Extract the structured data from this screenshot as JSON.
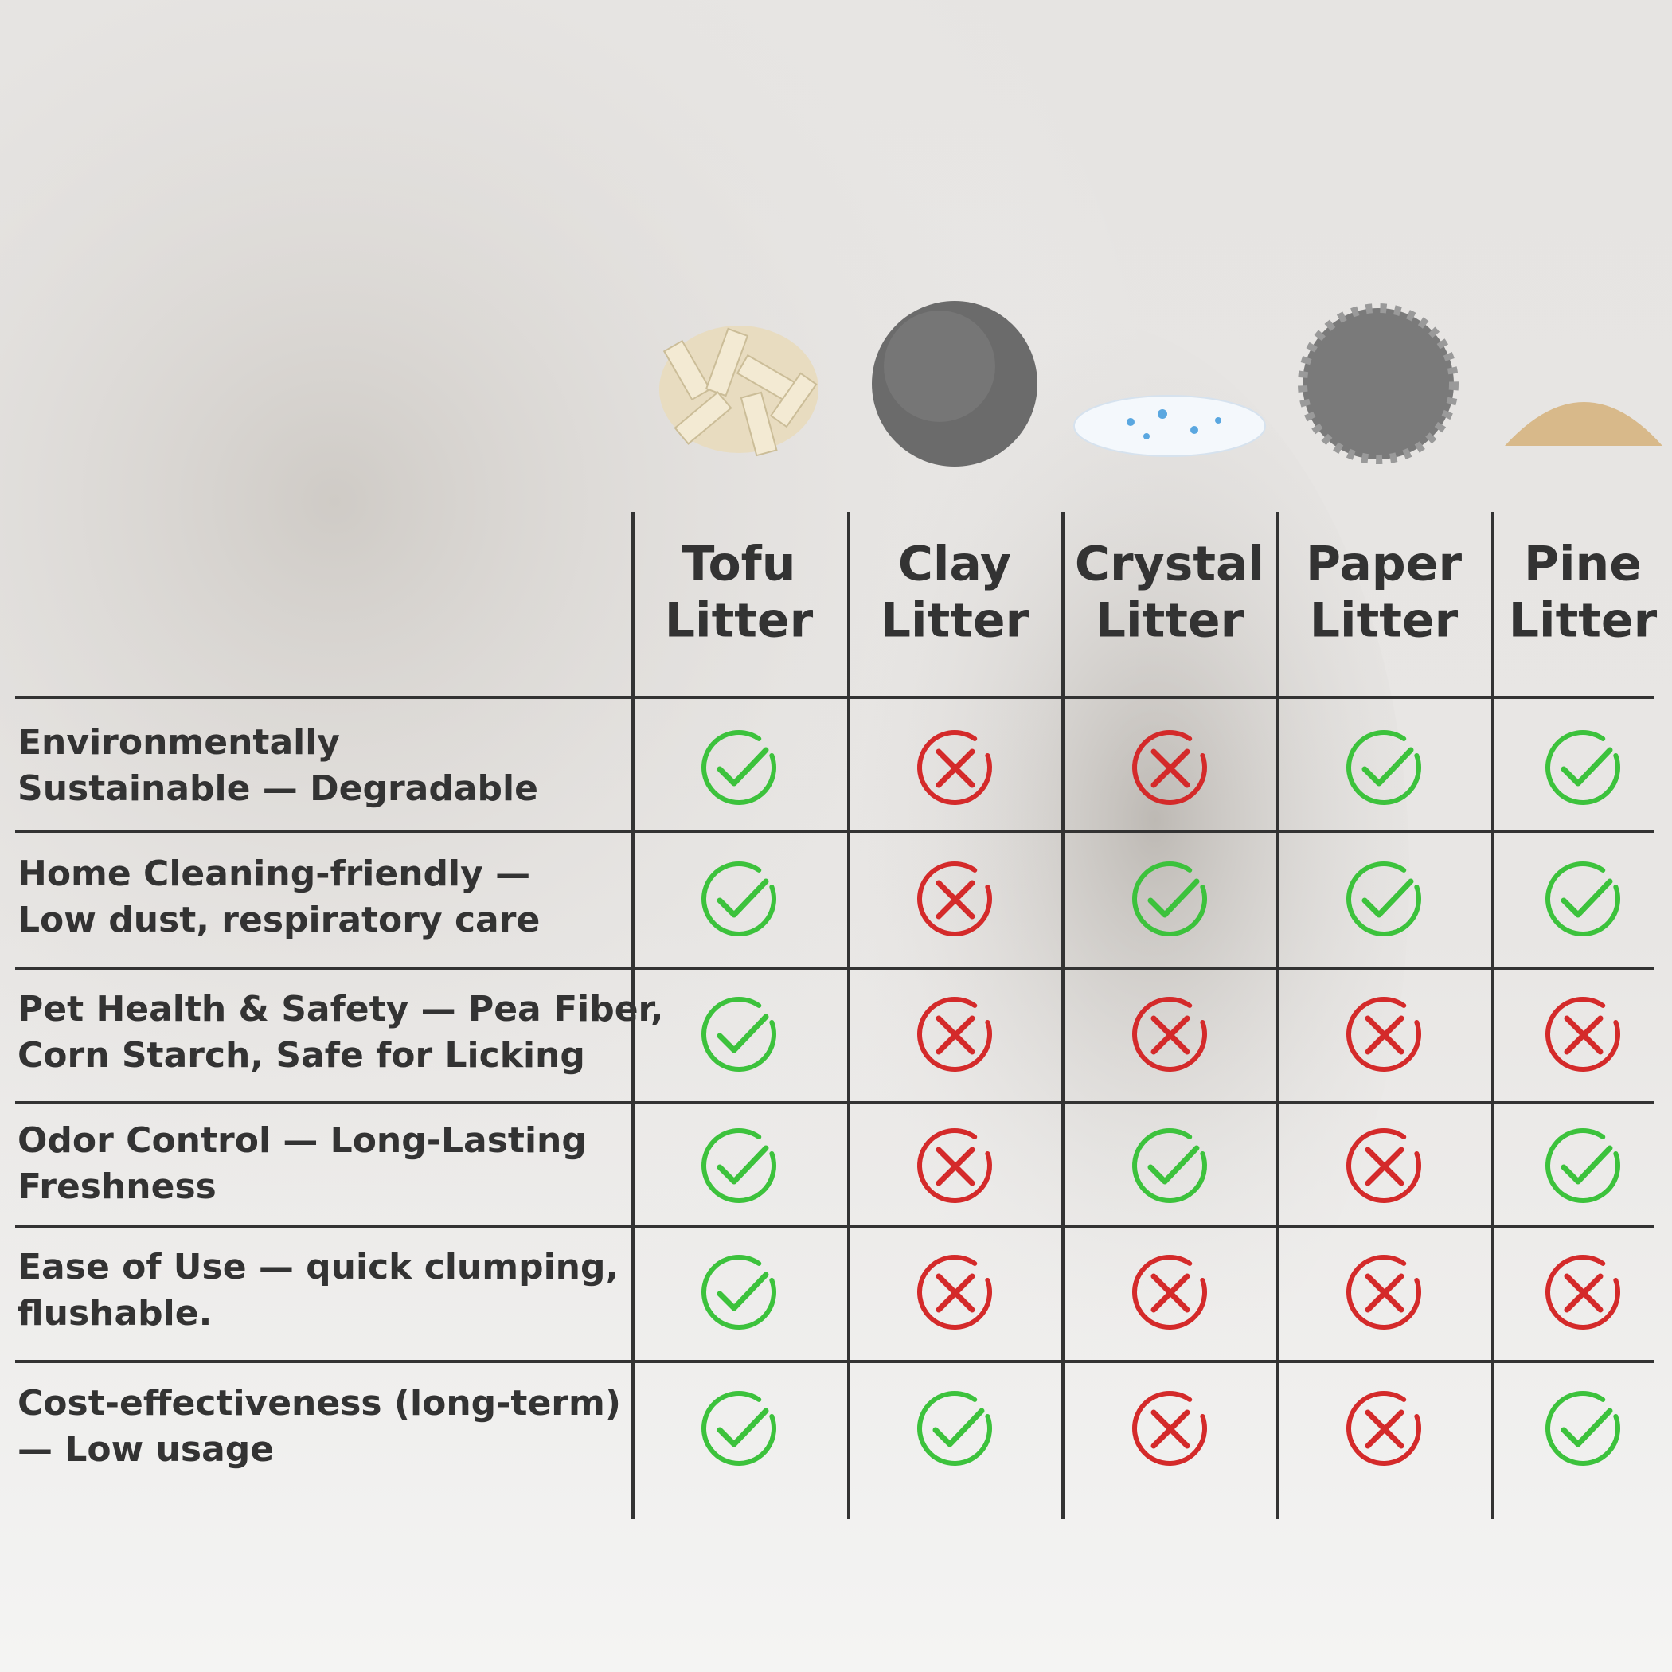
{
  "table": {
    "columns": [
      {
        "lines": [
          "Tofu",
          "Litter"
        ]
      },
      {
        "lines": [
          "Clay",
          "Litter"
        ]
      },
      {
        "lines": [
          "Crystal",
          "Litter"
        ]
      },
      {
        "lines": [
          "Paper",
          "Litter"
        ]
      },
      {
        "lines": [
          "Pine",
          "Litter"
        ]
      }
    ],
    "rows": [
      {
        "lines": [
          "Environmentally",
          "Sustainable — Degradable"
        ],
        "cells": [
          true,
          false,
          false,
          true,
          true
        ]
      },
      {
        "lines": [
          "Home Cleaning-friendly —",
          "Low dust, respiratory care"
        ],
        "cells": [
          true,
          false,
          true,
          true,
          true
        ]
      },
      {
        "lines": [
          "Pet Health & Safety — Pea Fiber,",
          "Corn Starch, Safe for Licking"
        ],
        "cells": [
          true,
          false,
          false,
          false,
          false
        ]
      },
      {
        "lines": [
          "Odor Control — Long-Lasting",
          "Freshness"
        ],
        "cells": [
          true,
          false,
          true,
          false,
          true
        ]
      },
      {
        "lines": [
          "Ease of Use — quick clumping,",
          "flushable."
        ],
        "cells": [
          true,
          false,
          false,
          false,
          false
        ]
      },
      {
        "lines": [
          "Cost-effectiveness (long-term)",
          "— Low usage"
        ],
        "cells": [
          true,
          true,
          false,
          false,
          true
        ]
      }
    ]
  }
}
